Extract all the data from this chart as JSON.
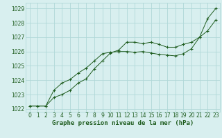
{
  "line1_x": [
    0,
    1,
    2,
    3,
    4,
    5,
    6,
    7,
    8,
    9,
    10,
    11,
    12,
    13,
    14,
    15,
    16,
    17,
    18,
    19,
    20,
    21,
    22,
    23
  ],
  "line1_y": [
    1022.2,
    1022.2,
    1022.2,
    1022.8,
    1023.0,
    1023.3,
    1023.8,
    1024.1,
    1024.8,
    1025.35,
    1025.9,
    1026.1,
    1026.65,
    1026.65,
    1026.55,
    1026.65,
    1026.5,
    1026.3,
    1026.3,
    1026.5,
    1026.65,
    1027.0,
    1027.45,
    1028.2
  ],
  "line2_x": [
    0,
    1,
    2,
    3,
    4,
    5,
    6,
    7,
    8,
    9,
    10,
    11,
    12,
    13,
    14,
    15,
    16,
    17,
    18,
    19,
    20,
    21,
    22,
    23
  ],
  "line2_y": [
    1022.2,
    1022.2,
    1022.2,
    1023.3,
    1023.8,
    1024.05,
    1024.5,
    1024.85,
    1025.35,
    1025.85,
    1025.95,
    1026.0,
    1026.0,
    1025.95,
    1026.0,
    1025.9,
    1025.8,
    1025.75,
    1025.7,
    1025.85,
    1026.2,
    1027.0,
    1028.3,
    1029.0
  ],
  "line_color": "#1e5c1e",
  "bg_color": "#d8efef",
  "grid_color": "#b0d8d8",
  "xlabel": "Graphe pression niveau de la mer (hPa)",
  "ylim": [
    1021.8,
    1029.4
  ],
  "xlim": [
    -0.5,
    23.5
  ],
  "yticks": [
    1022,
    1023,
    1024,
    1025,
    1026,
    1027,
    1028,
    1029
  ],
  "xticks": [
    0,
    1,
    2,
    3,
    4,
    5,
    6,
    7,
    8,
    9,
    10,
    11,
    12,
    13,
    14,
    15,
    16,
    17,
    18,
    19,
    20,
    21,
    22,
    23
  ],
  "xlabel_fontsize": 6.5,
  "tick_fontsize": 5.5,
  "title_fontsize": 7
}
